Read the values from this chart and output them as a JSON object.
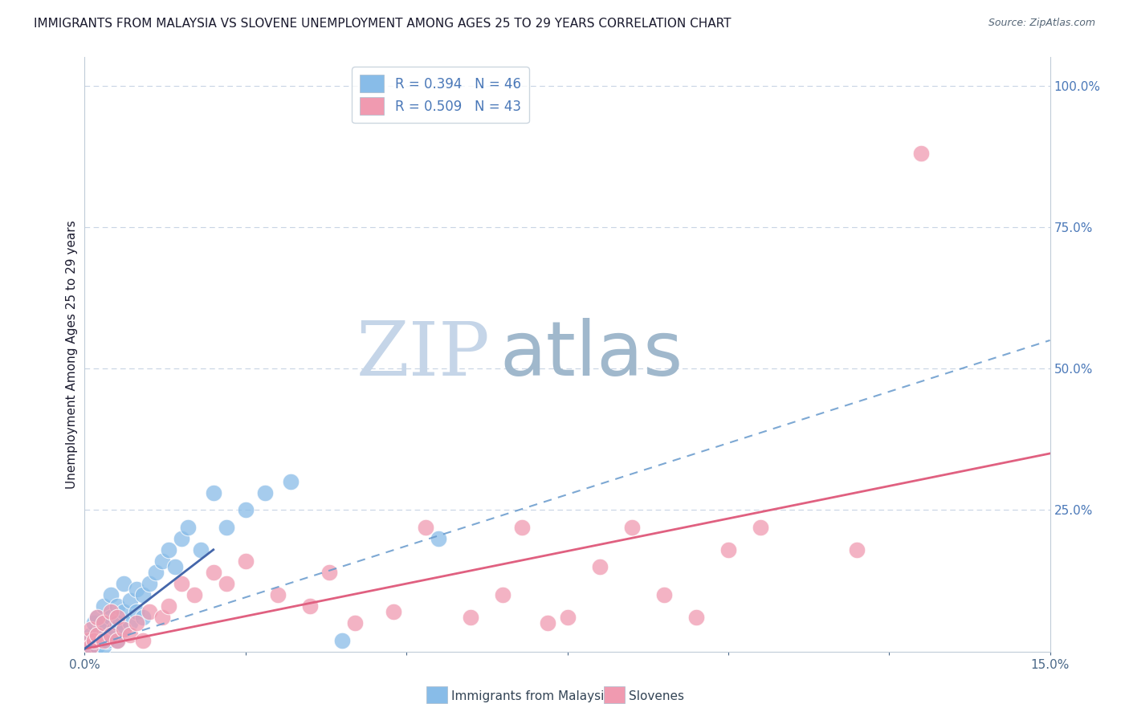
{
  "title": "IMMIGRANTS FROM MALAYSIA VS SLOVENE UNEMPLOYMENT AMONG AGES 25 TO 29 YEARS CORRELATION CHART",
  "source": "Source: ZipAtlas.com",
  "ylabel": "Unemployment Among Ages 25 to 29 years",
  "xlim": [
    0.0,
    0.15
  ],
  "ylim": [
    0.0,
    1.05
  ],
  "xticks": [
    0.0,
    0.025,
    0.05,
    0.075,
    0.1,
    0.125,
    0.15
  ],
  "xtick_labels": [
    "0.0%",
    "",
    "",
    "",
    "",
    "",
    "15.0%"
  ],
  "yticks_right": [
    0.0,
    0.25,
    0.5,
    0.75,
    1.0
  ],
  "ytick_right_labels": [
    "",
    "25.0%",
    "50.0%",
    "75.0%",
    "100.0%"
  ],
  "blue_R": 0.394,
  "blue_N": 46,
  "pink_R": 0.509,
  "pink_N": 43,
  "blue_color": "#88bce8",
  "pink_color": "#f09ab0",
  "blue_line_color": "#6699cc",
  "pink_line_color": "#e06080",
  "blue_short_line_color": "#4466aa",
  "watermark_zip": "ZIP",
  "watermark_atlas": "atlas",
  "watermark_color_zip": "#c5d5e8",
  "watermark_color_atlas": "#a0b8cc",
  "background_color": "#ffffff",
  "grid_color": "#c8d4e4",
  "title_fontsize": 11,
  "blue_scatter_x": [
    0.0005,
    0.001,
    0.001,
    0.0015,
    0.0015,
    0.002,
    0.002,
    0.002,
    0.0025,
    0.0025,
    0.003,
    0.003,
    0.003,
    0.003,
    0.0035,
    0.004,
    0.004,
    0.004,
    0.0045,
    0.005,
    0.005,
    0.005,
    0.006,
    0.006,
    0.006,
    0.007,
    0.007,
    0.008,
    0.008,
    0.009,
    0.009,
    0.01,
    0.011,
    0.012,
    0.013,
    0.014,
    0.015,
    0.016,
    0.018,
    0.02,
    0.022,
    0.025,
    0.028,
    0.032,
    0.04,
    0.055
  ],
  "blue_scatter_y": [
    0.02,
    0.01,
    0.03,
    0.02,
    0.05,
    0.01,
    0.03,
    0.06,
    0.02,
    0.04,
    0.01,
    0.03,
    0.05,
    0.08,
    0.02,
    0.03,
    0.06,
    0.1,
    0.04,
    0.02,
    0.05,
    0.08,
    0.04,
    0.07,
    0.12,
    0.05,
    0.09,
    0.07,
    0.11,
    0.06,
    0.1,
    0.12,
    0.14,
    0.16,
    0.18,
    0.15,
    0.2,
    0.22,
    0.18,
    0.28,
    0.22,
    0.25,
    0.28,
    0.3,
    0.02,
    0.2
  ],
  "pink_scatter_x": [
    0.0005,
    0.001,
    0.001,
    0.0015,
    0.002,
    0.002,
    0.003,
    0.003,
    0.004,
    0.004,
    0.005,
    0.005,
    0.006,
    0.007,
    0.008,
    0.009,
    0.01,
    0.012,
    0.013,
    0.015,
    0.017,
    0.02,
    0.022,
    0.025,
    0.03,
    0.035,
    0.038,
    0.042,
    0.048,
    0.053,
    0.06,
    0.065,
    0.068,
    0.072,
    0.075,
    0.08,
    0.085,
    0.09,
    0.095,
    0.1,
    0.105,
    0.12,
    0.13
  ],
  "pink_scatter_y": [
    0.02,
    0.01,
    0.04,
    0.02,
    0.03,
    0.06,
    0.02,
    0.05,
    0.03,
    0.07,
    0.02,
    0.06,
    0.04,
    0.03,
    0.05,
    0.02,
    0.07,
    0.06,
    0.08,
    0.12,
    0.1,
    0.14,
    0.12,
    0.16,
    0.1,
    0.08,
    0.14,
    0.05,
    0.07,
    0.22,
    0.06,
    0.1,
    0.22,
    0.05,
    0.06,
    0.15,
    0.22,
    0.1,
    0.06,
    0.18,
    0.22,
    0.18,
    0.88
  ],
  "blue_trendline_y0": 0.005,
  "blue_trendline_y1": 0.55,
  "pink_trendline_y0": 0.005,
  "pink_trendline_y1": 0.35,
  "blue_shortline_x": [
    0.0,
    0.02
  ],
  "blue_shortline_y": [
    0.005,
    0.18
  ]
}
